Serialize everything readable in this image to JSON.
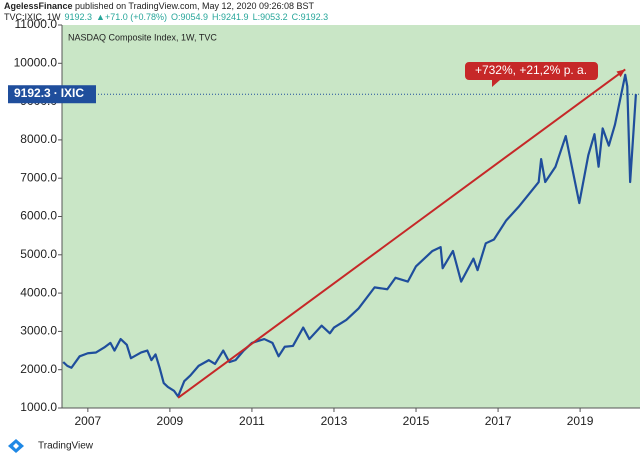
{
  "chart_data": {
    "type": "line",
    "published_by": "AgelessFinance",
    "published_line": "published on TradingView.com, May 12, 2020 09:26:08 BST",
    "symbol_line": [
      "TVC:IXIC, 1W",
      "9192.3",
      "▲+71.0 (+0.78%)",
      "O:9054.9",
      "H:9241.9",
      "L:9053.2",
      "C:9192.3"
    ],
    "title": "NASDAQ Composite Index, 1W, TVC",
    "annotation": "+732%, +21,2% p. a.",
    "trend_arrow": {
      "x": [
        2009.2,
        2020.1
      ],
      "y": [
        1265,
        9840
      ],
      "color": "#c62828"
    },
    "last_price": 9192.3,
    "symbol": "IXIC",
    "footer": "TradingView",
    "background": "#c9e6c6",
    "x": [
      2006.4,
      2006.5,
      2006.6,
      2006.8,
      2007.0,
      2007.2,
      2007.4,
      2007.55,
      2007.65,
      2007.8,
      2007.95,
      2008.05,
      2008.3,
      2008.45,
      2008.55,
      2008.65,
      2008.75,
      2008.85,
      2008.95,
      2009.1,
      2009.2,
      2009.35,
      2009.5,
      2009.7,
      2009.95,
      2010.1,
      2010.3,
      2010.45,
      2010.6,
      2010.8,
      2011.0,
      2011.3,
      2011.5,
      2011.65,
      2011.8,
      2012.0,
      2012.25,
      2012.4,
      2012.7,
      2012.9,
      2013.0,
      2013.3,
      2013.6,
      2013.99,
      2014.3,
      2014.5,
      2014.8,
      2015.0,
      2015.4,
      2015.6,
      2015.65,
      2015.9,
      2016.1,
      2016.4,
      2016.5,
      2016.7,
      2016.9,
      2017.2,
      2017.5,
      2017.99,
      2018.05,
      2018.15,
      2018.4,
      2018.65,
      2018.8,
      2018.98,
      2019.2,
      2019.35,
      2019.45,
      2019.55,
      2019.7,
      2019.85,
      2020.1,
      2020.15,
      2020.2,
      2020.22,
      2020.3,
      2020.36
    ],
    "series": [
      {
        "name": "IXIC",
        "color": "#1f4e9c",
        "values": [
          2200,
          2100,
          2050,
          2350,
          2430,
          2450,
          2580,
          2700,
          2500,
          2800,
          2650,
          2300,
          2450,
          2500,
          2250,
          2400,
          2050,
          1650,
          1550,
          1450,
          1300,
          1700,
          1850,
          2100,
          2250,
          2150,
          2500,
          2200,
          2250,
          2500,
          2700,
          2800,
          2700,
          2350,
          2600,
          2620,
          3100,
          2800,
          3150,
          2950,
          3100,
          3300,
          3600,
          4150,
          4100,
          4400,
          4300,
          4700,
          5100,
          5200,
          4650,
          5100,
          4300,
          4900,
          4600,
          5300,
          5400,
          5900,
          6250,
          6900,
          7500,
          6900,
          7300,
          8100,
          7300,
          6350,
          7600,
          8150,
          7300,
          8300,
          7850,
          8400,
          9700,
          9400,
          7600,
          6900,
          8200,
          9192.3
        ]
      }
    ],
    "xlim": [
      2006.37,
      2020.46
    ],
    "ylim": [
      1000,
      11000
    ],
    "xticks": [
      2007,
      2009,
      2011,
      2013,
      2015,
      2017,
      2019
    ],
    "yticks": [
      {
        "value": 1000,
        "label": "1000.0"
      },
      {
        "value": 2000,
        "label": "2000.0"
      },
      {
        "value": 3000,
        "label": "3000.0"
      },
      {
        "value": 4000,
        "label": "4000.0"
      },
      {
        "value": 5000,
        "label": "5000.0"
      },
      {
        "value": 6000,
        "label": "6000.0"
      },
      {
        "value": 7000,
        "label": "7000.0"
      },
      {
        "value": 8000,
        "label": "8000.0"
      },
      {
        "value": 9000,
        "label": "9000.0"
      },
      {
        "value": 10000,
        "label": "10000.0"
      },
      {
        "value": 11000,
        "label": "11000.0"
      }
    ]
  }
}
